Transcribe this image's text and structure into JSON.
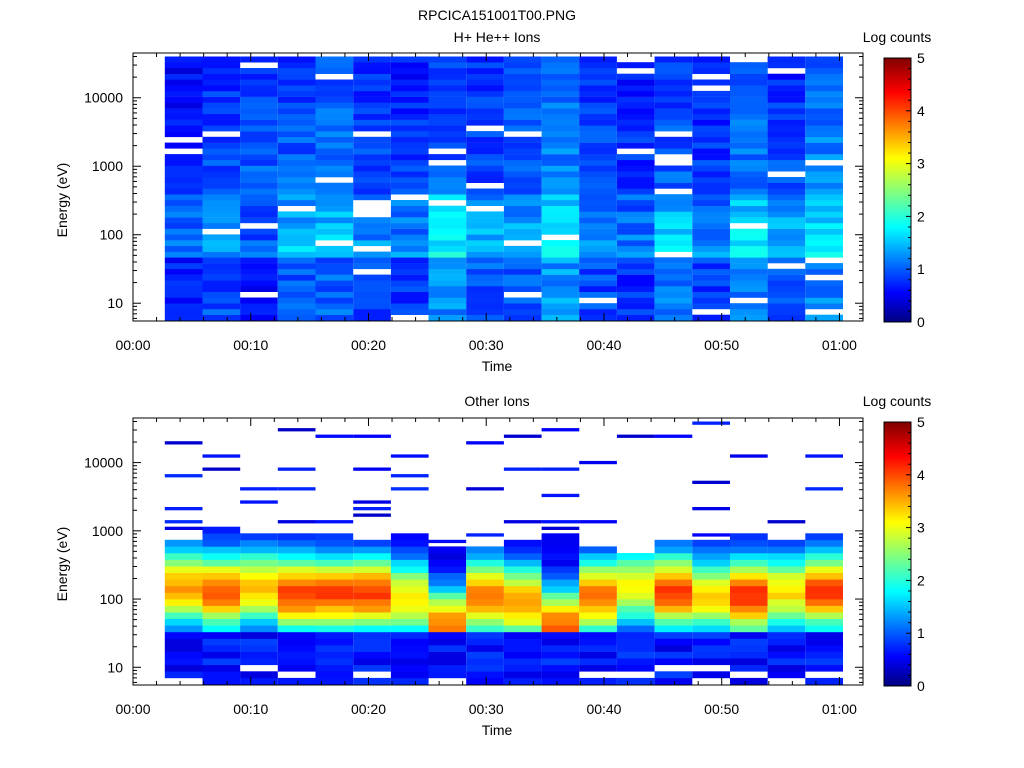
{
  "figure_title": "RPCICA151001T00.PNG",
  "chart_data": [
    {
      "type": "heatmap",
      "title": "H+ He++ Ions",
      "xlabel": "Time",
      "ylabel": "Energy (eV)",
      "colorbar_label": "Log counts",
      "yscale": "log",
      "ylim": [
        5.5,
        45000
      ],
      "xlim_minutes": [
        0,
        62
      ],
      "x_tick_labels": [
        "00:00",
        "00:10",
        "00:20",
        "00:30",
        "00:40",
        "00:50",
        "01:00"
      ],
      "y_tick_labels": [
        "10",
        "100",
        "1000",
        "10000"
      ],
      "colorbar_range": [
        0,
        5
      ],
      "colorbar_tick_labels": [
        "0",
        "1",
        "2",
        "3",
        "4",
        "5"
      ],
      "time_bins_start_minutes": [
        2.7,
        5.9,
        9.1,
        12.3,
        15.5,
        18.7,
        21.9,
        25.1,
        28.3,
        31.5,
        34.7,
        37.9,
        41.1,
        44.3,
        47.5,
        50.7,
        53.9,
        57.1
      ],
      "time_bin_width_minutes": 3.2,
      "energy_bins_eV": [
        40000,
        9.0,
        700
      ],
      "energy_bins_note": "",
      "count_level_per_column_low_mid_high": [
        [
          0.9,
          0.7,
          0.55
        ],
        [
          1.3,
          0.9,
          0.6
        ],
        [
          0.8,
          1.0,
          0.6
        ],
        [
          1.5,
          1.0,
          0.6
        ],
        [
          1.6,
          1.1,
          0.55
        ],
        [
          1.2,
          0.9,
          0.6
        ],
        [
          1.1,
          0.8,
          0.5
        ],
        [
          1.9,
          1.0,
          0.6
        ],
        [
          1.5,
          0.9,
          0.55
        ],
        [
          1.4,
          1.0,
          0.6
        ],
        [
          2.0,
          1.2,
          0.6
        ],
        [
          1.3,
          0.9,
          0.55
        ],
        [
          1.0,
          0.8,
          0.5
        ],
        [
          1.7,
          1.0,
          0.6
        ],
        [
          1.1,
          0.8,
          0.5
        ],
        [
          1.8,
          1.1,
          0.6
        ],
        [
          1.4,
          0.9,
          0.55
        ],
        [
          1.8,
          1.2,
          0.6
        ]
      ]
    },
    {
      "type": "heatmap",
      "title": "Other Ions",
      "xlabel": "Time",
      "ylabel": "Energy (eV)",
      "colorbar_label": "Log counts",
      "yscale": "log",
      "ylim": [
        5.5,
        45000
      ],
      "xlim_minutes": [
        0,
        62
      ],
      "x_tick_labels": [
        "00:00",
        "00:10",
        "00:20",
        "00:30",
        "00:40",
        "00:50",
        "01:00"
      ],
      "y_tick_labels": [
        "10",
        "100",
        "1000",
        "10000"
      ],
      "colorbar_range": [
        0,
        5
      ],
      "colorbar_tick_labels": [
        "0",
        "1",
        "2",
        "3",
        "4",
        "5"
      ],
      "time_bins_start_minutes": [
        2.7,
        5.9,
        9.1,
        12.3,
        15.5,
        18.7,
        21.9,
        25.1,
        28.3,
        31.5,
        34.7,
        37.9,
        41.1,
        44.3,
        47.5,
        50.7,
        53.9,
        57.1
      ],
      "time_bin_width_minutes": 3.2,
      "upper_edge_eV_per_column": [
        800,
        1050,
        1000,
        950,
        1000,
        700,
        900,
        550,
        650,
        700,
        900,
        600,
        500,
        700,
        750,
        1000,
        800,
        850
      ],
      "peak_energy_eV_per_column": [
        150,
        130,
        150,
        120,
        120,
        120,
        100,
        40,
        110,
        90,
        40,
        110,
        150,
        130,
        110,
        110,
        130,
        130
      ],
      "peak_log_counts_per_column": [
        3.1,
        3.5,
        3.0,
        3.6,
        3.6,
        3.6,
        2.8,
        3.3,
        3.3,
        3.2,
        3.4,
        3.4,
        2.6,
        3.6,
        2.8,
        3.7,
        2.8,
        3.6
      ],
      "isolated_high_energy_counts_eV": [
        [
          20000,
          5500,
          2000,
          1400,
          1100
        ],
        [
          11000,
          7500
        ],
        [
          3500,
          2700
        ],
        [
          27000,
          8000,
          4000,
          1300
        ],
        [
          24000,
          1350
        ],
        [
          21000,
          8000,
          2600,
          1900,
          1600
        ],
        [
          13000,
          6400,
          3800
        ],
        [
          600,
          560
        ],
        [
          17000,
          4300,
          900
        ],
        [
          22000,
          7700,
          1250
        ],
        [
          29000,
          7800,
          2900,
          1400,
          1050,
          600
        ],
        [
          9600,
          1400
        ],
        [
          21000
        ],
        [
          21000
        ],
        [
          34000,
          4800,
          1800,
          800
        ],
        [
          12000,
          11000
        ],
        [
          1300
        ],
        [
          12000,
          4000
        ]
      ]
    }
  ]
}
